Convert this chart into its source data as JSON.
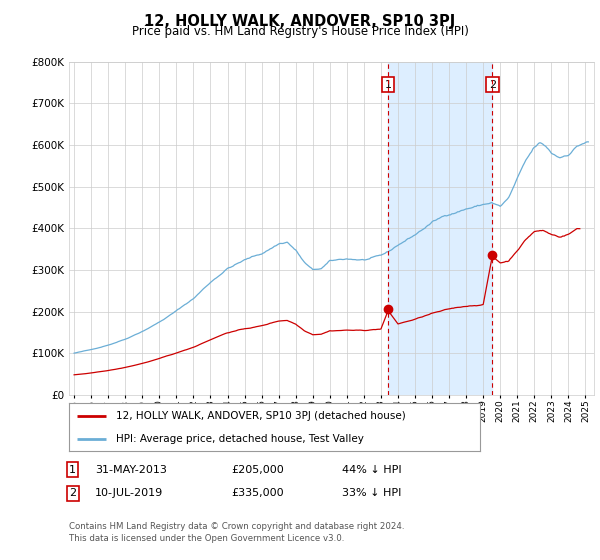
{
  "title": "12, HOLLY WALK, ANDOVER, SP10 3PJ",
  "subtitle": "Price paid vs. HM Land Registry's House Price Index (HPI)",
  "ylim": [
    0,
    800000
  ],
  "yticks": [
    0,
    100000,
    200000,
    300000,
    400000,
    500000,
    600000,
    700000,
    800000
  ],
  "hpi_color": "#6baed6",
  "price_color": "#cc0000",
  "shade_color": "#ddeeff",
  "marker1_x": 2013.42,
  "marker2_x": 2019.53,
  "marker1_price": 205000,
  "marker2_price": 335000,
  "legend_entry1": "12, HOLLY WALK, ANDOVER, SP10 3PJ (detached house)",
  "legend_entry2": "HPI: Average price, detached house, Test Valley",
  "footer": "Contains HM Land Registry data © Crown copyright and database right 2024.\nThis data is licensed under the Open Government Licence v3.0.",
  "background_color": "#ffffff",
  "grid_color": "#cccccc",
  "xlim_left": 1994.7,
  "xlim_right": 2025.5
}
